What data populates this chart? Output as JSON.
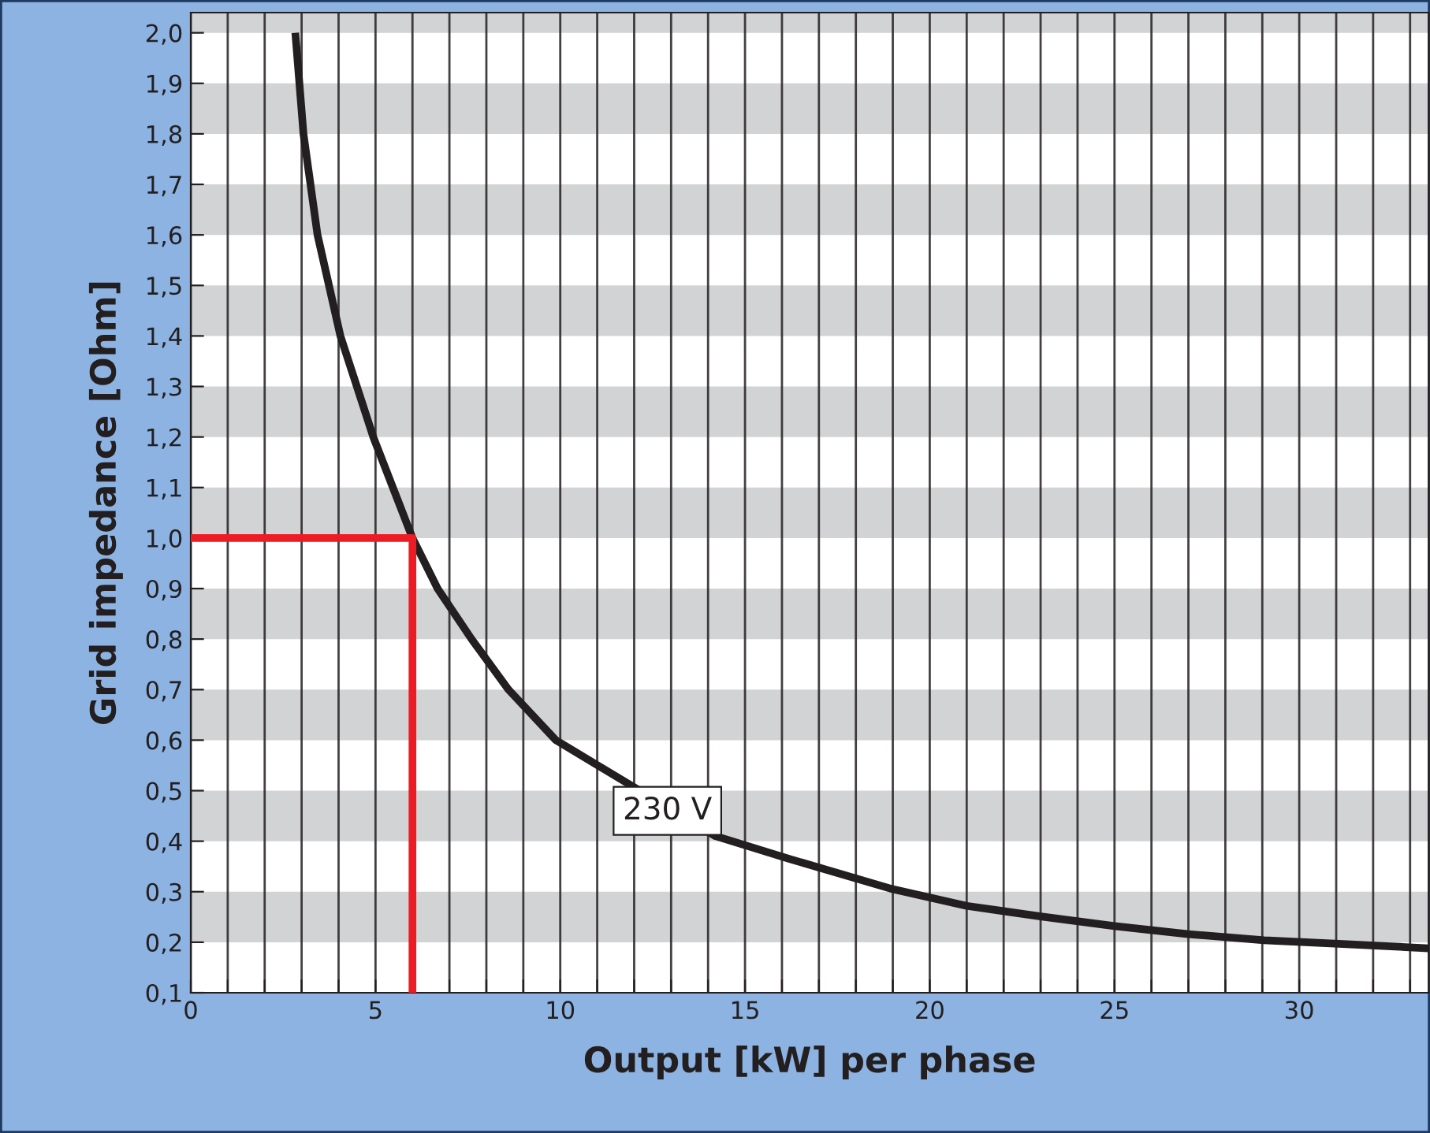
{
  "chart_data": {
    "type": "line",
    "xlabel": "Output [kW] per phase",
    "ylabel": "Grid impedance [Ohm]",
    "series": [
      {
        "color": "#231f20",
        "x": [
          2.83,
          3.05,
          3.43,
          4.05,
          4.94,
          6.0,
          6.68,
          7.6,
          8.6,
          9.88,
          14.2,
          16.2,
          19.0,
          21.0,
          23.0,
          25.0,
          27.0,
          29.05,
          31.07,
          33.5
        ],
        "values": [
          2.0,
          1.8,
          1.6,
          1.4,
          1.2,
          1.0,
          0.9,
          0.8,
          0.7,
          0.6,
          0.41,
          0.365,
          0.305,
          0.272,
          0.251,
          0.232,
          0.216,
          0.204,
          0.197,
          0.188
        ]
      },
      {
        "color": "#ed1c24",
        "x": [
          0,
          6,
          6
        ],
        "values": [
          1.0,
          1.0,
          0.1
        ]
      }
    ],
    "annotations": [
      {
        "text": "230 V",
        "x": 12.9,
        "y": 0.46
      }
    ],
    "xlim": [
      0,
      33.5
    ],
    "ylim": [
      0.1,
      2.04
    ],
    "xticks": [
      0,
      {
        "value": 1,
        "label": null
      },
      {
        "value": 2,
        "label": null
      },
      {
        "value": 3,
        "label": null
      },
      {
        "value": 4,
        "label": null
      },
      5,
      {
        "value": 6,
        "label": null
      },
      {
        "value": 7,
        "label": null
      },
      {
        "value": 8,
        "label": null
      },
      {
        "value": 9,
        "label": null
      },
      10,
      {
        "value": 11,
        "label": null
      },
      {
        "value": 12,
        "label": null
      },
      {
        "value": 13,
        "label": null
      },
      {
        "value": 14,
        "label": null
      },
      15,
      {
        "value": 16,
        "label": null
      },
      {
        "value": 17,
        "label": null
      },
      {
        "value": 18,
        "label": null
      },
      {
        "value": 19,
        "label": null
      },
      20,
      {
        "value": 21,
        "label": null
      },
      {
        "value": 22,
        "label": null
      },
      {
        "value": 23,
        "label": null
      },
      {
        "value": 24,
        "label": null
      },
      25,
      {
        "value": 26,
        "label": null
      },
      {
        "value": 27,
        "label": null
      },
      {
        "value": 28,
        "label": null
      },
      {
        "value": 29,
        "label": null
      },
      30,
      {
        "value": 31,
        "label": null
      },
      {
        "value": 32,
        "label": null
      },
      {
        "value": 33,
        "label": null
      }
    ],
    "yticks": [
      {
        "value": 0.1,
        "label": "0,1"
      },
      {
        "value": 0.2,
        "label": "0,2"
      },
      {
        "value": 0.3,
        "label": "0,3"
      },
      {
        "value": 0.4,
        "label": "0,4"
      },
      {
        "value": 0.5,
        "label": "0,5"
      },
      {
        "value": 0.6,
        "label": "0,6"
      },
      {
        "value": 0.7,
        "label": "0,7"
      },
      {
        "value": 0.8,
        "label": "0,8"
      },
      {
        "value": 0.9,
        "label": "0,9"
      },
      {
        "value": 1.0,
        "label": "1,0"
      },
      {
        "value": 1.1,
        "label": "1,1"
      },
      {
        "value": 1.2,
        "label": "1,2"
      },
      {
        "value": 1.3,
        "label": "1,3"
      },
      {
        "value": 1.4,
        "label": "1,4"
      },
      {
        "value": 1.5,
        "label": "1,5"
      },
      {
        "value": 1.6,
        "label": "1,6"
      },
      {
        "value": 1.7,
        "label": "1,7"
      },
      {
        "value": 1.8,
        "label": "1,8"
      },
      {
        "value": 1.9,
        "label": "1,9"
      },
      {
        "value": 2.0,
        "label": "2,0"
      }
    ],
    "bands": [
      {
        "axis": "y",
        "from": 0.2,
        "to": 0.3,
        "color": "#d1d3d4"
      },
      {
        "axis": "y",
        "from": 0.4,
        "to": 0.5,
        "color": "#d1d3d4"
      },
      {
        "axis": "y",
        "from": 0.6,
        "to": 0.7,
        "color": "#d1d3d4"
      },
      {
        "axis": "y",
        "from": 0.8,
        "to": 0.9,
        "color": "#d1d3d4"
      },
      {
        "axis": "y",
        "from": 1.0,
        "to": 1.1,
        "color": "#d1d3d4"
      },
      {
        "axis": "y",
        "from": 1.2,
        "to": 1.3,
        "color": "#d1d3d4"
      },
      {
        "axis": "y",
        "from": 1.4,
        "to": 1.5,
        "color": "#d1d3d4"
      },
      {
        "axis": "y",
        "from": 1.6,
        "to": 1.7,
        "color": "#d1d3d4"
      },
      {
        "axis": "y",
        "from": 1.8,
        "to": 1.9,
        "color": "#d1d3d4"
      },
      {
        "axis": "y",
        "from": 2.0,
        "to": 2.04,
        "color": "#d1d3d4"
      }
    ],
    "grid": "x",
    "marker": "none",
    "line_style": "solid"
  }
}
